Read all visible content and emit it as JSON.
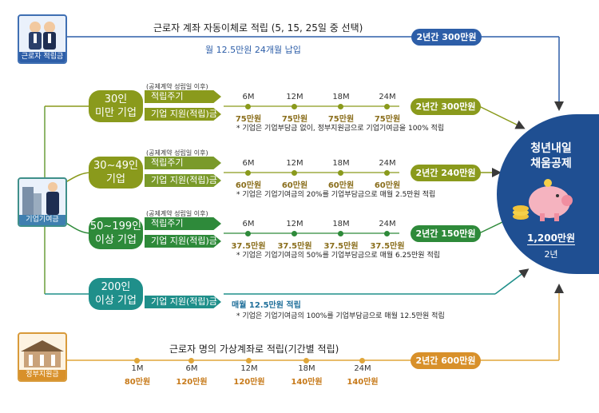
{
  "worker": {
    "caption": "근로자 적립금",
    "title": "근로자 계좌 자동이체로 적립 (5, 15, 25일 중 선택)",
    "subtitle": "월 12.5만원 24개월 납입",
    "total": "2년간 300만원"
  },
  "company": {
    "caption": "기업기여금"
  },
  "government": {
    "caption": "정부지원금",
    "title": "근로자 명의 가상계좌로 적립(기간별 적립)",
    "months": [
      "1M",
      "6M",
      "12M",
      "18M",
      "24M"
    ],
    "amounts": [
      "80만원",
      "120만원",
      "120만원",
      "140만원",
      "140만원"
    ],
    "total": "2년간 600만원"
  },
  "common": {
    "contract_note": "(공제계약 성립일 이후)",
    "cycle_label": "적립주기",
    "support_label": "기업 지원(적립)금",
    "months": [
      "6M",
      "12M",
      "18M",
      "24M"
    ]
  },
  "tiers": [
    {
      "name_line1": "30인",
      "name_line2": "미만 기업",
      "amounts": [
        "75만원",
        "75만원",
        "75만원",
        "75만원"
      ],
      "note": "* 기업은 기업부담금 없이, 정부지원금으로 기업기여금을 100% 적립",
      "total": "2년간 300만원"
    },
    {
      "name_line1": "30~49인",
      "name_line2": "기업",
      "amounts": [
        "60만원",
        "60만원",
        "60만원",
        "60만원"
      ],
      "note": "* 기업은 기업기여금의 20%를 기업부담금으로 매월 2.5만원 적립",
      "total": "2년간 240만원"
    },
    {
      "name_line1": "50~199인",
      "name_line2": "이상 기업",
      "amounts": [
        "37.5만원",
        "37.5만원",
        "37.5만원",
        "37.5만원"
      ],
      "note": "* 기업은 기업기여금의 50%를 기업부담금으로 매월 6.25만원 적립",
      "total": "2년간 150만원"
    },
    {
      "name_line1": "200인",
      "name_line2": "이상 기업",
      "monthly": "매월 12.5만원 적립",
      "note": "* 기업은 기업기여금의 100%를 기업부담금으로 매월 12.5만원 적립"
    }
  ],
  "goal": {
    "title_line1": "청년내일",
    "title_line2": "채움공제",
    "amount": "1,200만원",
    "period": "2년"
  },
  "colors": {
    "olive": "#8a9a1c",
    "green": "#2e8a3a",
    "teal": "#1f8f8a",
    "blue": "#2d5ea8",
    "gold": "#e0a63a"
  }
}
